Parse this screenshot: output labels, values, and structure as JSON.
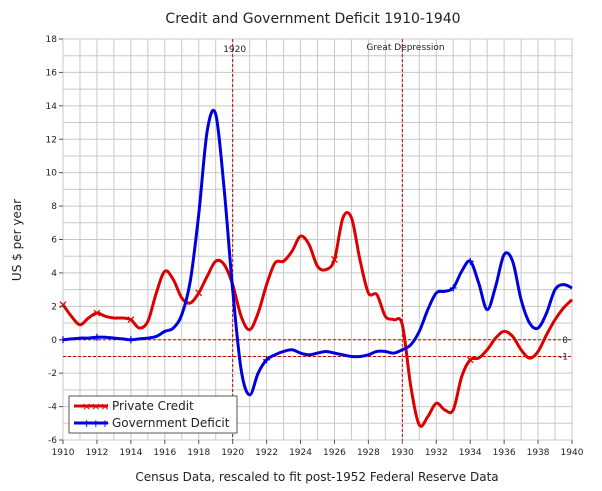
{
  "chart_data": {
    "type": "line",
    "title": "Credit and Government Deficit 1910-1940",
    "xlabel": "Census Data, rescaled to fit post-1952 Federal Reserve Data",
    "ylabel": "US $ per year",
    "xlim": [
      1910,
      1940
    ],
    "ylim": [
      -6,
      18
    ],
    "x_ticks": [
      "1910",
      "1912",
      "1914",
      "1916",
      "1918",
      "1920",
      "1922",
      "1924",
      "1926",
      "1928",
      "1930",
      "1932",
      "1934",
      "1936",
      "1938",
      "1940"
    ],
    "y_ticks": [
      "-6",
      "-4",
      "-2",
      "0",
      "2",
      "4",
      "6",
      "8",
      "10",
      "12",
      "14",
      "16",
      "18"
    ],
    "grid": true,
    "legend_position": "bottom-left",
    "vertical_markers": [
      {
        "x": 1920,
        "label": "1920"
      },
      {
        "x": 1930,
        "label": "Great Depression"
      }
    ],
    "horizontal_markers": [
      {
        "y": 0,
        "label": "0"
      },
      {
        "y": -1,
        "label": "-1"
      }
    ],
    "series": [
      {
        "name": "Private Credit",
        "color": "#dd0000",
        "marker": "x",
        "x": [
          1910,
          1910.5,
          1911,
          1911.5,
          1912,
          1912.5,
          1913,
          1913.5,
          1914,
          1914.5,
          1915,
          1915.5,
          1916,
          1916.5,
          1917,
          1917.5,
          1918,
          1918.5,
          1919,
          1919.5,
          1920,
          1920.5,
          1921,
          1921.5,
          1922,
          1922.5,
          1923,
          1923.5,
          1924,
          1924.5,
          1925,
          1925.5,
          1926,
          1926.5,
          1927,
          1927.5,
          1928,
          1928.5,
          1929,
          1929.5,
          1930,
          1930.5,
          1931,
          1931.5,
          1932,
          1932.5,
          1933,
          1933.5,
          1934,
          1934.5,
          1935,
          1935.5,
          1936,
          1936.5,
          1937,
          1937.5,
          1938,
          1938.5,
          1939,
          1939.5,
          1940
        ],
        "values": [
          2.1,
          1.4,
          0.9,
          1.3,
          1.6,
          1.4,
          1.3,
          1.3,
          1.2,
          0.7,
          1.1,
          2.8,
          4.1,
          3.6,
          2.5,
          2.2,
          2.8,
          3.8,
          4.7,
          4.5,
          3.3,
          1.4,
          0.6,
          1.6,
          3.3,
          4.6,
          4.7,
          5.3,
          6.2,
          5.7,
          4.4,
          4.2,
          4.8,
          7.3,
          7.3,
          4.8,
          2.8,
          2.7,
          1.4,
          1.2,
          0.9,
          -2.8,
          -5.1,
          -4.6,
          -3.8,
          -4.2,
          -4.2,
          -2.2,
          -1.2,
          -1.1,
          -0.6,
          0.1,
          0.5,
          0.2,
          -0.6,
          -1.1,
          -0.7,
          0.3,
          1.2,
          1.9,
          2.4
        ]
      },
      {
        "name": "Government Deficit",
        "color": "#0000dd",
        "marker": "+",
        "x": [
          1910,
          1910.5,
          1911,
          1911.5,
          1912,
          1912.5,
          1913,
          1913.5,
          1914,
          1914.5,
          1915,
          1915.5,
          1916,
          1916.5,
          1917,
          1917.5,
          1918,
          1918.5,
          1919,
          1919.5,
          1920,
          1920.5,
          1921,
          1921.5,
          1922,
          1922.5,
          1923,
          1923.5,
          1924,
          1924.5,
          1925,
          1925.5,
          1926,
          1926.5,
          1927,
          1927.5,
          1928,
          1928.5,
          1929,
          1929.5,
          1930,
          1930.5,
          1931,
          1931.5,
          1932,
          1932.5,
          1933,
          1933.5,
          1934,
          1934.5,
          1935,
          1935.5,
          1936,
          1936.5,
          1937,
          1937.5,
          1938,
          1938.5,
          1939,
          1939.5,
          1940
        ],
        "values": [
          0,
          0.05,
          0.1,
          0.1,
          0.15,
          0.15,
          0.1,
          0.05,
          0,
          0.05,
          0.1,
          0.2,
          0.5,
          0.7,
          1.5,
          3.5,
          7.5,
          12.5,
          13.5,
          9,
          3,
          -1.8,
          -3.3,
          -2,
          -1.2,
          -0.9,
          -0.7,
          -0.6,
          -0.8,
          -0.9,
          -0.8,
          -0.7,
          -0.8,
          -0.9,
          -1,
          -1,
          -0.9,
          -0.7,
          -0.7,
          -0.8,
          -0.6,
          -0.3,
          0.5,
          1.8,
          2.8,
          2.9,
          3.1,
          4.1,
          4.7,
          3.4,
          1.8,
          3.2,
          5.1,
          4.7,
          2.4,
          1.0,
          0.7,
          1.6,
          3.0,
          3.3,
          3.1
        ]
      }
    ]
  }
}
